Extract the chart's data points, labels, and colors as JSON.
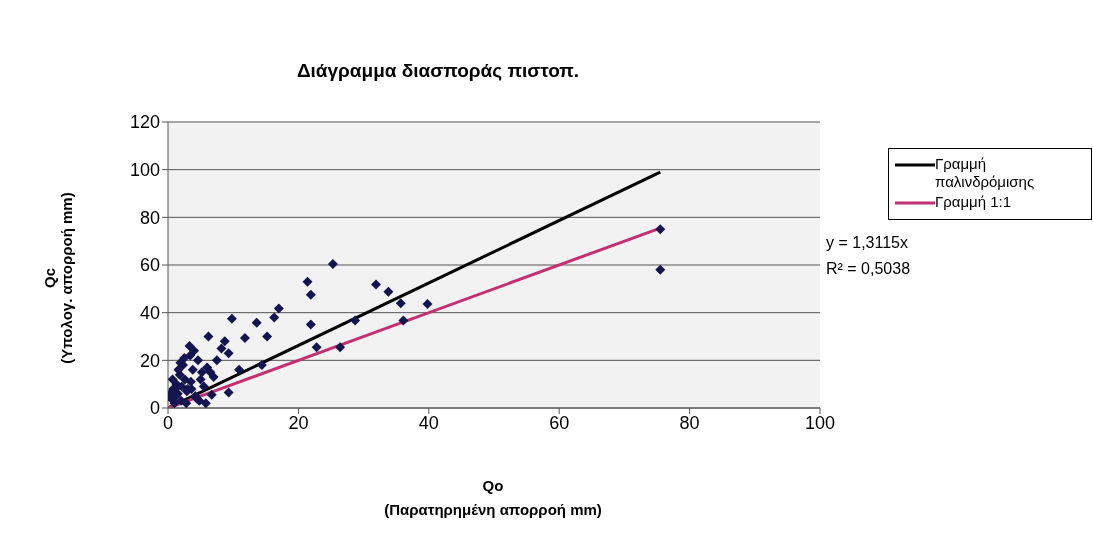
{
  "chart_data": {
    "type": "scatter",
    "title": "Διάγραμμα διασποράς πιστοπ.",
    "xlabel": "Qo\n(Παρατηρημένη απορροή mm)",
    "ylabel": "Qc\n(Υπολογ. απορροή mm)",
    "xlim": [
      0,
      100
    ],
    "xticks": [
      0,
      20,
      40,
      60,
      80,
      100
    ],
    "ylim": [
      0,
      120
    ],
    "yticks": [
      0,
      20,
      40,
      60,
      80,
      100,
      120
    ],
    "grid": "y",
    "legend": "right",
    "annotations": [
      "y = 1,3115x",
      "R² = 0,5038"
    ],
    "series": [
      {
        "marker": "diamond",
        "color": "#141450",
        "x": [
          75.5,
          75.5,
          25.3,
          21.4,
          21.9,
          21.9,
          22.8,
          26.4,
          31.9,
          33.8,
          35.7,
          36.1,
          39.8,
          28.7,
          17,
          16.3,
          9.8,
          13.6,
          15.2,
          11.8,
          6.2,
          8.7,
          14.4,
          10.9,
          9.3,
          8.2,
          3.3,
          9.3,
          6.7,
          0.5,
          0.8,
          1,
          1.3,
          1.5,
          1.8,
          2,
          2.3,
          2.6,
          3,
          3.4,
          3.8,
          4.2,
          4.6,
          5,
          5.5,
          6,
          6.5,
          7,
          7.5,
          0.3,
          0.7,
          1.2,
          1.6,
          2.1,
          2.5,
          2.9,
          3.5,
          4,
          4.4,
          5.2,
          5.8,
          1.1,
          1.9,
          2.8,
          3.6,
          4.8
        ],
        "values": [
          75,
          58,
          60.4,
          53,
          47.5,
          35,
          25.5,
          25.5,
          51.8,
          48.8,
          44,
          36.7,
          43.6,
          36.7,
          41.8,
          38,
          37.5,
          35.8,
          30,
          29.4,
          30,
          28,
          18,
          16,
          23,
          25,
          26,
          6.5,
          5.6,
          4,
          8,
          2,
          10,
          6,
          14,
          3,
          18,
          12,
          8,
          22,
          16,
          5,
          20,
          12,
          9,
          17,
          15,
          13,
          20,
          6,
          12,
          5,
          16,
          9,
          21,
          7,
          11,
          24,
          4,
          15,
          2,
          8,
          19,
          2,
          8,
          3
        ]
      },
      {
        "type": "line",
        "marker": "none",
        "name": "Γραμμή παλινδρόμισης",
        "color": "#000000",
        "x": [
          0,
          75.5
        ],
        "values": [
          0,
          99
        ]
      },
      {
        "type": "line",
        "marker": "none",
        "name": "Γραμμή 1:1",
        "color": "#c2306f",
        "x": [
          0,
          75.5
        ],
        "values": [
          0,
          75.5
        ]
      }
    ]
  }
}
